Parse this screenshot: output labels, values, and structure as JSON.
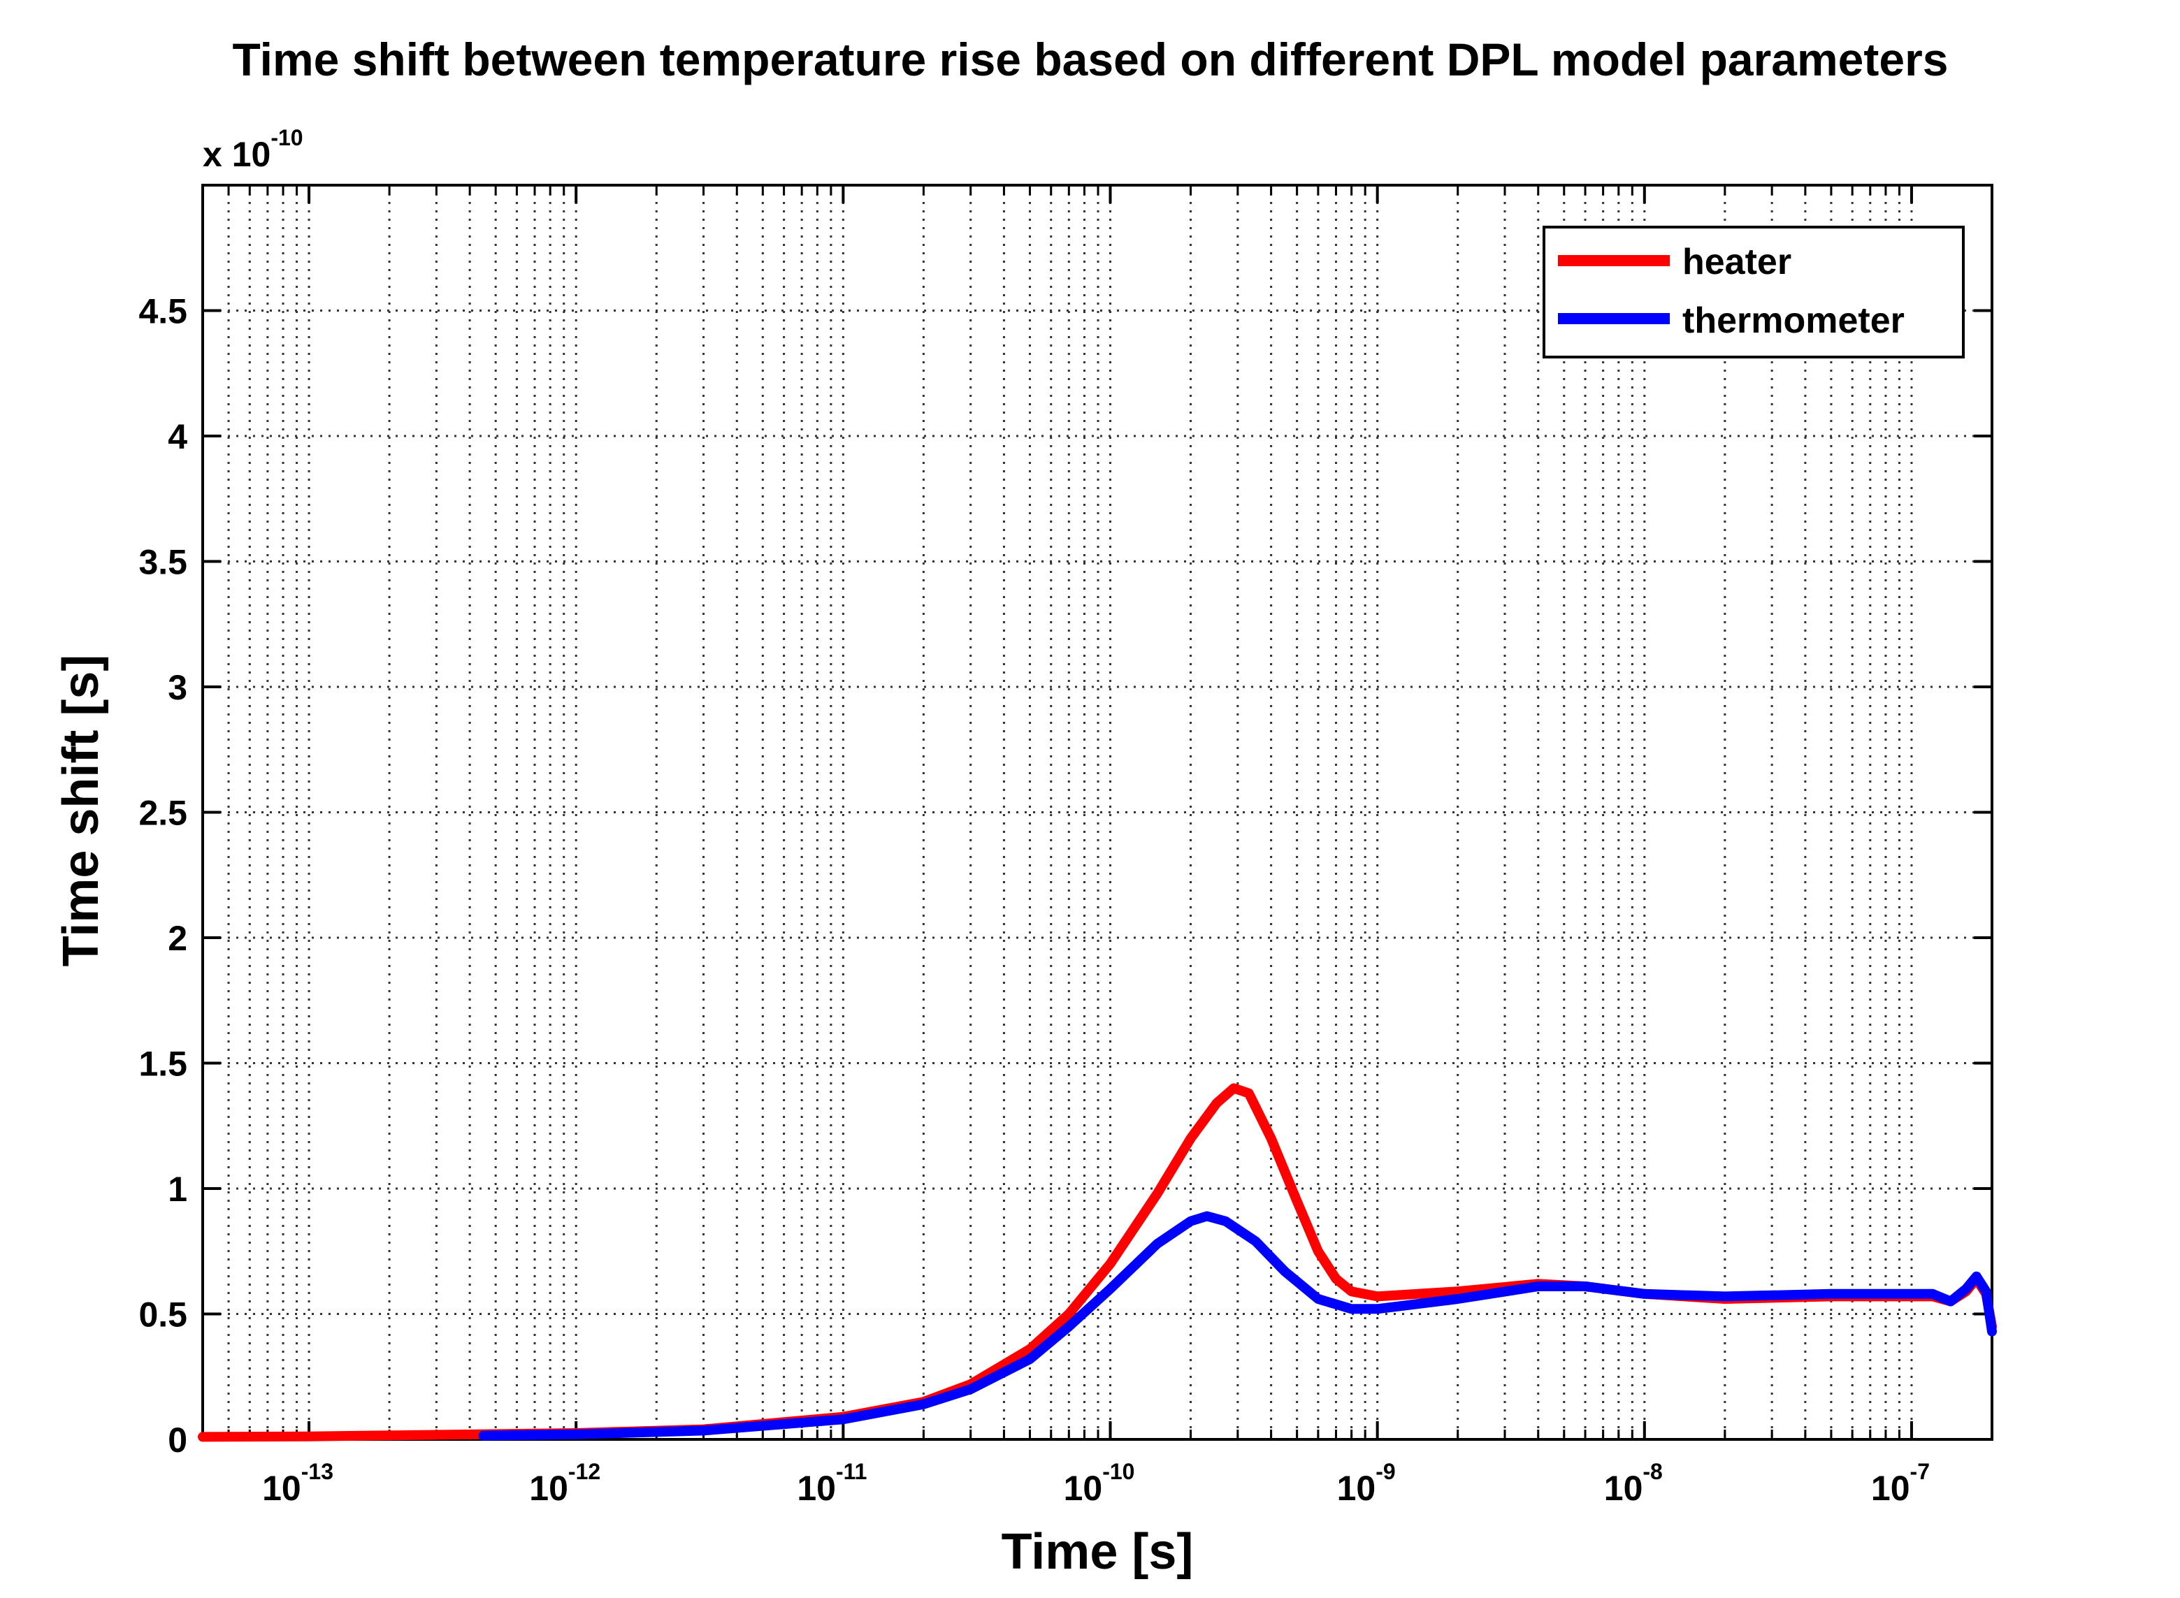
{
  "chart_data": {
    "type": "line",
    "title": "Time shift between temperature rise based on different DPL model parameters",
    "xlabel": "Time [s]",
    "ylabel": "Time shift [s]",
    "y_multiplier": {
      "base": "x 10",
      "exponent": "-10"
    },
    "xscale": "log",
    "xlim": [
      4e-14,
      2e-07
    ],
    "ylim": [
      0,
      5
    ],
    "grid": true,
    "legend_position": "top-right",
    "x_ticks": [
      {
        "value": 1e-13,
        "base": "10",
        "exp": "-13"
      },
      {
        "value": 1e-12,
        "base": "10",
        "exp": "-12"
      },
      {
        "value": 1e-11,
        "base": "10",
        "exp": "-11"
      },
      {
        "value": 1e-10,
        "base": "10",
        "exp": "-10"
      },
      {
        "value": 1e-09,
        "base": "10",
        "exp": "-9"
      },
      {
        "value": 1e-08,
        "base": "10",
        "exp": "-8"
      },
      {
        "value": 1e-07,
        "base": "10",
        "exp": "-7"
      }
    ],
    "y_ticks": [
      {
        "value": 0,
        "label": "0"
      },
      {
        "value": 0.5,
        "label": "0.5"
      },
      {
        "value": 1,
        "label": "1"
      },
      {
        "value": 1.5,
        "label": "1.5"
      },
      {
        "value": 2,
        "label": "2"
      },
      {
        "value": 2.5,
        "label": "2.5"
      },
      {
        "value": 3,
        "label": "3"
      },
      {
        "value": 3.5,
        "label": "3.5"
      },
      {
        "value": 4,
        "label": "4"
      },
      {
        "value": 4.5,
        "label": "4.5"
      }
    ],
    "series": [
      {
        "name": "heater",
        "color": "#ff0000",
        "points": [
          [
            4e-14,
            0.01
          ],
          [
            1e-13,
            0.012
          ],
          [
            1e-12,
            0.025
          ],
          [
            3e-12,
            0.04
          ],
          [
            1e-11,
            0.09
          ],
          [
            2e-11,
            0.15
          ],
          [
            3e-11,
            0.22
          ],
          [
            5e-11,
            0.36
          ],
          [
            7e-11,
            0.5
          ],
          [
            1e-10,
            0.7
          ],
          [
            1.5e-10,
            0.98
          ],
          [
            2e-10,
            1.2
          ],
          [
            2.5e-10,
            1.34
          ],
          [
            2.9e-10,
            1.4
          ],
          [
            3.3e-10,
            1.38
          ],
          [
            4e-10,
            1.2
          ],
          [
            5e-10,
            0.95
          ],
          [
            6e-10,
            0.75
          ],
          [
            7e-10,
            0.64
          ],
          [
            8e-10,
            0.59
          ],
          [
            1e-09,
            0.57
          ],
          [
            2e-09,
            0.59
          ],
          [
            4e-09,
            0.62
          ],
          [
            6e-09,
            0.61
          ],
          [
            1e-08,
            0.58
          ],
          [
            2e-08,
            0.56
          ],
          [
            5e-08,
            0.57
          ],
          [
            1e-07,
            0.57
          ],
          [
            1.2e-07,
            0.57
          ],
          [
            1.4e-07,
            0.55
          ],
          [
            1.6e-07,
            0.59
          ],
          [
            1.75e-07,
            0.64
          ],
          [
            1.9e-07,
            0.58
          ],
          [
            2e-07,
            0.45
          ]
        ]
      },
      {
        "name": "thermometer",
        "color": "#0000ff",
        "points": [
          [
            4.5e-13,
            0.015
          ],
          [
            1e-12,
            0.02
          ],
          [
            3e-12,
            0.035
          ],
          [
            1e-11,
            0.08
          ],
          [
            2e-11,
            0.14
          ],
          [
            3e-11,
            0.2
          ],
          [
            5e-11,
            0.32
          ],
          [
            7e-11,
            0.45
          ],
          [
            1e-10,
            0.6
          ],
          [
            1.5e-10,
            0.78
          ],
          [
            2e-10,
            0.87
          ],
          [
            2.3e-10,
            0.89
          ],
          [
            2.7e-10,
            0.87
          ],
          [
            3.5e-10,
            0.79
          ],
          [
            4.5e-10,
            0.67
          ],
          [
            6e-10,
            0.56
          ],
          [
            8e-10,
            0.52
          ],
          [
            1e-09,
            0.52
          ],
          [
            2e-09,
            0.56
          ],
          [
            4e-09,
            0.61
          ],
          [
            6e-09,
            0.61
          ],
          [
            1e-08,
            0.58
          ],
          [
            2e-08,
            0.57
          ],
          [
            5e-08,
            0.58
          ],
          [
            1e-07,
            0.58
          ],
          [
            1.2e-07,
            0.58
          ],
          [
            1.4e-07,
            0.55
          ],
          [
            1.6e-07,
            0.6
          ],
          [
            1.75e-07,
            0.65
          ],
          [
            1.9e-07,
            0.59
          ],
          [
            2e-07,
            0.43
          ]
        ]
      }
    ]
  }
}
